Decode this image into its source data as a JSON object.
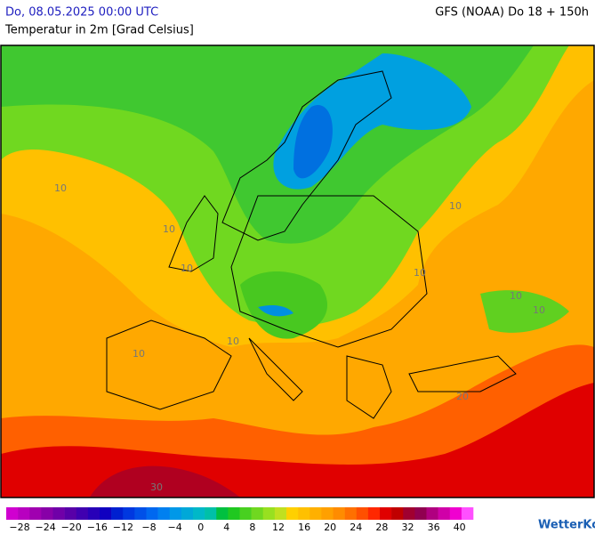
{
  "header": {
    "date": "Do, 08.05.2025 00:00 UTC",
    "model": "GFS (NOAA) Do 18 + 150h",
    "subtitle": "Temperatur in 2m [Grad Celsius]"
  },
  "map": {
    "contour_labels": [
      "10",
      "10",
      "10",
      "10",
      "10",
      "10",
      "10",
      "10",
      "10",
      "20",
      "30"
    ]
  },
  "legend": {
    "labels": [
      "−28",
      "−24",
      "−20",
      "−16",
      "−12",
      "−8",
      "−4",
      "0",
      "4",
      "8",
      "12",
      "16",
      "20",
      "24",
      "28",
      "32",
      "36",
      "40"
    ],
    "colors": [
      "#d000d0",
      "#b800c0",
      "#a000b0",
      "#8800a8",
      "#7000a8",
      "#5800a8",
      "#4000b0",
      "#2800b8",
      "#1000c0",
      "#0020d0",
      "#0038e0",
      "#0050e8",
      "#0068f0",
      "#0080f0",
      "#0098e8",
      "#00a8d8",
      "#00b8c8",
      "#00c0a8",
      "#00c040",
      "#20c820",
      "#48d020",
      "#70d820",
      "#98e020",
      "#c0e020",
      "#ffd000",
      "#ffc000",
      "#ffb000",
      "#ffa000",
      "#ff8c00",
      "#ff7000",
      "#ff5000",
      "#ff2800",
      "#e00000",
      "#c00000",
      "#a00030",
      "#900050",
      "#b00080",
      "#d000a8",
      "#f000d0",
      "#ff50ff"
    ]
  },
  "logo": "WetterKontor"
}
